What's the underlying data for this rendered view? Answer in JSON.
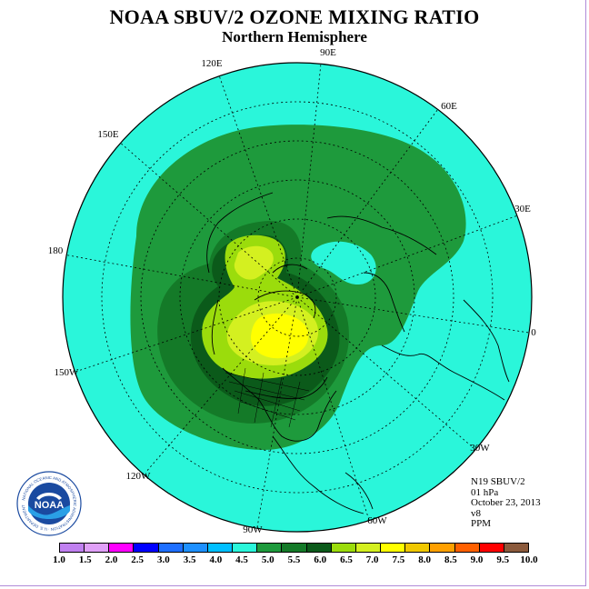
{
  "title": "NOAA SBUV/2 OZONE MIXING RATIO",
  "subtitle": "Northern Hemisphere",
  "longitude_labels": {
    "lon_90E": "90E",
    "lon_60E": "60E",
    "lon_30E": "30E",
    "lon_0": "0",
    "lon_30W": "30W",
    "lon_60W": "60W",
    "lon_90W": "90W",
    "lon_120W": "120W",
    "lon_150W": "150W",
    "lon_180": "180",
    "lon_150E": "150E",
    "lon_120E": "120E"
  },
  "info": {
    "satellite": "N19 SBUV/2",
    "level": "01 hPa",
    "date": "October 23, 2013",
    "version": "v8",
    "units": "PPM"
  },
  "logo": {
    "center_text": "NOAA",
    "ring_text": "NATIONAL OCEANIC AND ATMOSPHERIC ADMINISTRATION · U.S. DEPARTMENT OF COMMERCE"
  },
  "colorbar": {
    "ticks": [
      "1.0",
      "1.5",
      "2.0",
      "2.5",
      "3.0",
      "3.5",
      "4.0",
      "4.5",
      "5.0",
      "5.5",
      "6.0",
      "6.5",
      "7.0",
      "7.5",
      "8.0",
      "8.5",
      "9.0",
      "9.5",
      "10.0"
    ],
    "colors": [
      "#c080f0",
      "#e0a0f8",
      "#ff00ff",
      "#0000ff",
      "#1e6fff",
      "#1e90ff",
      "#00bfff",
      "#2af6da",
      "#1e9a3c",
      "#147a28",
      "#0b5a1a",
      "#9bdc0c",
      "#d4f020",
      "#ffff00",
      "#f0c800",
      "#ffa000",
      "#ff6000",
      "#ff0000",
      "#8b5a3c"
    ]
  },
  "map": {
    "background_color": "#2af6da",
    "ring_colors": [
      "#1e9a3c",
      "#147a28",
      "#9bdc0c",
      "#d4f020",
      "#ffff00"
    ]
  }
}
